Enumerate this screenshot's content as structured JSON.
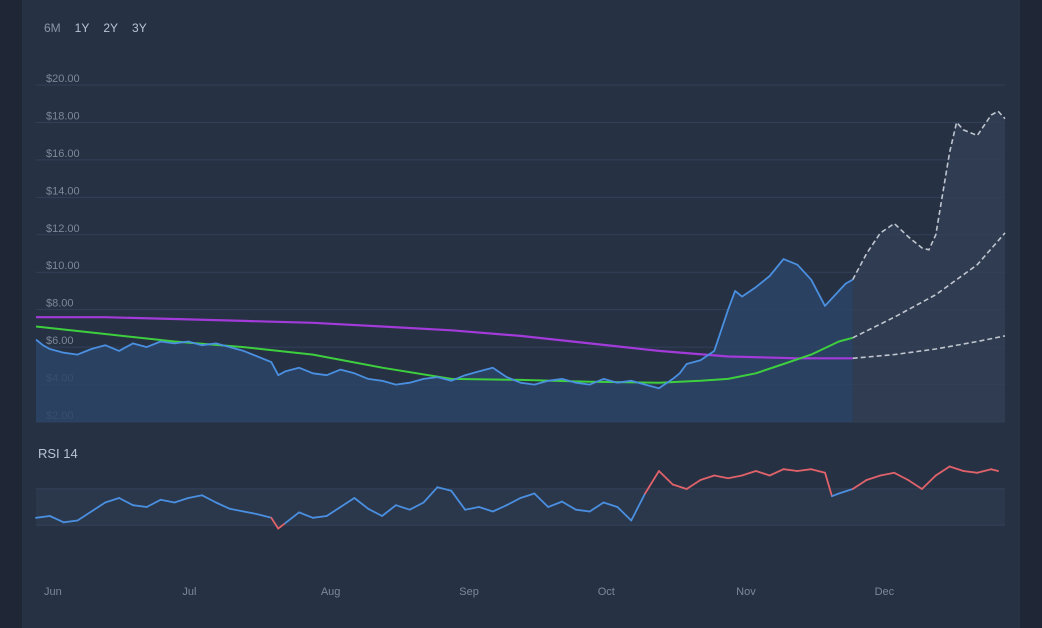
{
  "range_tabs": [
    "6M",
    "1Y",
    "2Y",
    "3Y"
  ],
  "chart_data": [
    {
      "type": "line",
      "title": "",
      "ylim": [
        2,
        20
      ],
      "y_ticks": [
        "$20.00",
        "$18.00",
        "$16.00",
        "$14.00",
        "$12.00",
        "$10.00",
        "$8.00",
        "$6.00",
        "$4.00",
        "$2.00"
      ],
      "y_tick_values": [
        20,
        18,
        16,
        14,
        12,
        10,
        8,
        6,
        4,
        2
      ],
      "x_tick_labels": [
        "Jun",
        "Jul",
        "Aug",
        "Sep",
        "Oct",
        "Nov",
        "Dec"
      ],
      "x_domain_months": [
        0,
        7.0
      ],
      "grid": true,
      "colors": {
        "price": "#4a8fe0",
        "sma_fast": "#3ecf3e",
        "sma_slow": "#a23bd9",
        "forecast": "#bfc5cf"
      },
      "series": [
        {
          "key": "price",
          "x": [
            0,
            0.05,
            0.1,
            0.2,
            0.3,
            0.4,
            0.5,
            0.6,
            0.7,
            0.8,
            0.9,
            1.0,
            1.1,
            1.2,
            1.3,
            1.4,
            1.5,
            1.6,
            1.7,
            1.75,
            1.8,
            1.9,
            2.0,
            2.1,
            2.2,
            2.3,
            2.4,
            2.5,
            2.6,
            2.7,
            2.8,
            2.9,
            3.0,
            3.1,
            3.2,
            3.3,
            3.4,
            3.5,
            3.6,
            3.7,
            3.8,
            3.9,
            4.0,
            4.1,
            4.2,
            4.3,
            4.4,
            4.5,
            4.6,
            4.65,
            4.7,
            4.8,
            4.9,
            5.0,
            5.05,
            5.1,
            5.2,
            5.25,
            5.3,
            5.4,
            5.5,
            5.6,
            5.7,
            5.75,
            5.8,
            5.85,
            5.9
          ],
          "y": [
            6.4,
            6.1,
            5.9,
            5.7,
            5.6,
            5.9,
            6.1,
            5.8,
            6.2,
            6.0,
            6.3,
            6.2,
            6.3,
            6.1,
            6.2,
            6.0,
            5.8,
            5.5,
            5.2,
            4.5,
            4.7,
            4.9,
            4.6,
            4.5,
            4.8,
            4.6,
            4.3,
            4.2,
            4.0,
            4.1,
            4.3,
            4.4,
            4.2,
            4.5,
            4.7,
            4.9,
            4.4,
            4.1,
            4.0,
            4.2,
            4.3,
            4.1,
            4.0,
            4.3,
            4.1,
            4.2,
            4.0,
            3.8,
            4.3,
            4.6,
            5.1,
            5.3,
            5.8,
            8.0,
            9.0,
            8.7,
            9.2,
            9.5,
            9.8,
            10.7,
            10.4,
            9.6,
            8.2,
            8.6,
            9.0,
            9.4,
            9.6
          ]
        },
        {
          "key": "sma_fast",
          "x": [
            0,
            0.5,
            1.0,
            1.5,
            2.0,
            2.5,
            3.0,
            3.5,
            4.0,
            4.5,
            4.8,
            5.0,
            5.2,
            5.4,
            5.6,
            5.8,
            5.9
          ],
          "y": [
            7.1,
            6.7,
            6.3,
            6.0,
            5.6,
            4.9,
            4.3,
            4.25,
            4.15,
            4.1,
            4.2,
            4.3,
            4.6,
            5.1,
            5.6,
            6.3,
            6.5
          ]
        },
        {
          "key": "sma_slow",
          "x": [
            0,
            0.5,
            1.0,
            1.5,
            2.0,
            2.5,
            3.0,
            3.5,
            4.0,
            4.5,
            5.0,
            5.5,
            5.9
          ],
          "y": [
            7.6,
            7.6,
            7.5,
            7.4,
            7.3,
            7.1,
            6.9,
            6.6,
            6.2,
            5.8,
            5.5,
            5.4,
            5.4
          ]
        },
        {
          "key": "forecast_high",
          "x": [
            5.9,
            6.0,
            6.1,
            6.2,
            6.3,
            6.4,
            6.45,
            6.5,
            6.6,
            6.65,
            6.7,
            6.8,
            6.9,
            6.95,
            7.0
          ],
          "y": [
            9.6,
            11.0,
            12.1,
            12.6,
            11.9,
            11.3,
            11.2,
            12.0,
            16.4,
            18.0,
            17.6,
            17.3,
            18.4,
            18.6,
            18.2
          ]
        },
        {
          "key": "forecast_mid",
          "x": [
            5.9,
            6.2,
            6.5,
            6.8,
            7.0
          ],
          "y": [
            6.5,
            7.6,
            8.8,
            10.4,
            12.1
          ]
        },
        {
          "key": "forecast_low",
          "x": [
            5.9,
            6.2,
            6.5,
            6.8,
            7.0
          ],
          "y": [
            5.4,
            5.6,
            5.9,
            6.3,
            6.6
          ]
        }
      ]
    },
    {
      "type": "line",
      "title": "RSI 14",
      "ylim": [
        0,
        100
      ],
      "thresholds": [
        30,
        70
      ],
      "colors": {
        "normal": "#4a8fe0",
        "overbought": "#e0626a",
        "oversold": "#e0626a"
      },
      "series": [
        {
          "key": "rsi",
          "x": [
            0,
            0.1,
            0.2,
            0.3,
            0.4,
            0.5,
            0.6,
            0.7,
            0.8,
            0.9,
            1.0,
            1.1,
            1.2,
            1.3,
            1.4,
            1.5,
            1.6,
            1.7,
            1.75,
            1.8,
            1.9,
            2.0,
            2.1,
            2.2,
            2.3,
            2.4,
            2.5,
            2.6,
            2.7,
            2.8,
            2.9,
            3.0,
            3.1,
            3.2,
            3.3,
            3.4,
            3.5,
            3.6,
            3.7,
            3.8,
            3.9,
            4.0,
            4.1,
            4.2,
            4.3,
            4.4,
            4.5,
            4.6,
            4.7,
            4.8,
            4.9,
            5.0,
            5.1,
            5.2,
            5.3,
            5.4,
            5.5,
            5.6,
            5.7,
            5.75,
            5.8,
            5.9,
            6.0,
            6.1,
            6.2,
            6.3,
            6.4,
            6.5,
            6.6,
            6.7,
            6.8,
            6.9,
            6.95
          ],
          "y": [
            38,
            40,
            33,
            35,
            45,
            55,
            60,
            52,
            50,
            58,
            55,
            60,
            63,
            55,
            48,
            45,
            42,
            38,
            26,
            32,
            44,
            38,
            40,
            50,
            60,
            48,
            40,
            52,
            47,
            55,
            72,
            68,
            47,
            50,
            45,
            52,
            60,
            65,
            50,
            56,
            47,
            45,
            55,
            50,
            35,
            65,
            90,
            75,
            70,
            80,
            85,
            82,
            85,
            90,
            85,
            92,
            90,
            92,
            88,
            62,
            65,
            70,
            80,
            85,
            88,
            80,
            70,
            85,
            95,
            90,
            88,
            92,
            90
          ]
        }
      ]
    }
  ]
}
